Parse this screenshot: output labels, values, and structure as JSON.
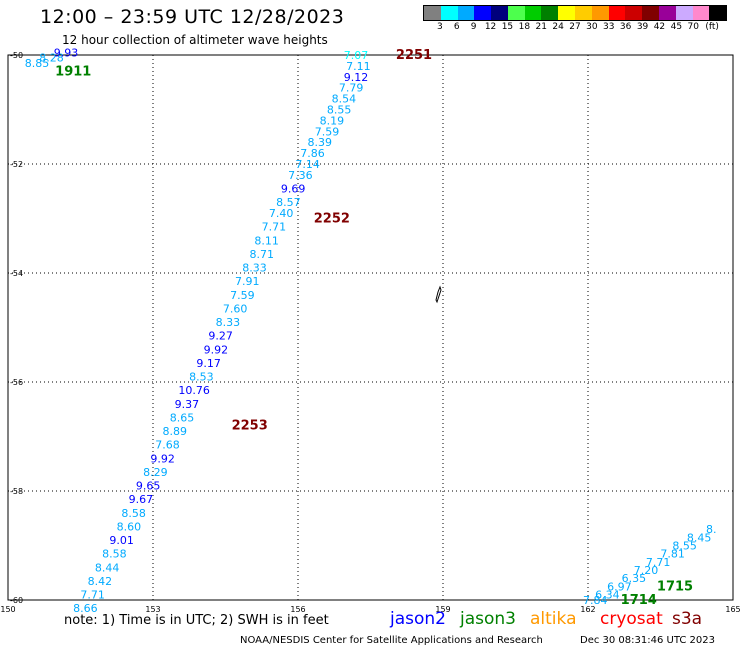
{
  "header": {
    "title": "12:00 – 23:59 UTC 12/28/2023",
    "subtitle": "12 hour collection of altimeter wave heights"
  },
  "legend": {
    "unit": "(ft)",
    "colors": [
      "#808080",
      "#00ffff",
      "#00aaff",
      "#0000ff",
      "#00007d",
      "#4dff4d",
      "#00cc00",
      "#008000",
      "#ffff00",
      "#ffcc00",
      "#ff9900",
      "#ff0000",
      "#cc0000",
      "#800000",
      "#990099",
      "#ccaaff",
      "#ff88cc",
      "#000000"
    ],
    "labels": [
      "3",
      "6",
      "9",
      "12",
      "15",
      "18",
      "21",
      "24",
      "27",
      "30",
      "33",
      "36",
      "39",
      "42",
      "45",
      "70"
    ]
  },
  "chart_data": {
    "type": "scatter",
    "xlim": [
      150,
      165
    ],
    "ylim": [
      -60,
      -50
    ],
    "x_ticks": [
      "150",
      "153",
      "156",
      "159",
      "162",
      "165"
    ],
    "y_ticks": [
      "-50",
      "-52",
      "-54",
      "-56",
      "-58",
      "-60"
    ],
    "grid": true,
    "points": [
      {
        "lon": 150.6,
        "lat": -50.15,
        "value": "8.85",
        "color": "#00aaff"
      },
      {
        "lon": 150.9,
        "lat": -50.05,
        "value": "8.28",
        "color": "#00aaff"
      },
      {
        "lon": 151.2,
        "lat": -49.95,
        "value": "9.93",
        "color": "#0000ff"
      },
      {
        "lon": 157.2,
        "lat": -50.0,
        "value": "7.07",
        "color": "#00ffff"
      },
      {
        "lon": 157.25,
        "lat": -50.2,
        "value": "7.11",
        "color": "#00aaff"
      },
      {
        "lon": 157.2,
        "lat": -50.4,
        "value": "9.12",
        "color": "#0000ff"
      },
      {
        "lon": 157.1,
        "lat": -50.6,
        "value": "7.79",
        "color": "#00aaff"
      },
      {
        "lon": 156.95,
        "lat": -50.8,
        "value": "8.54",
        "color": "#00aaff"
      },
      {
        "lon": 156.85,
        "lat": -51.0,
        "value": "8.55",
        "color": "#00aaff"
      },
      {
        "lon": 156.7,
        "lat": -51.2,
        "value": "8.19",
        "color": "#00aaff"
      },
      {
        "lon": 156.6,
        "lat": -51.4,
        "value": "7.59",
        "color": "#00aaff"
      },
      {
        "lon": 156.45,
        "lat": -51.6,
        "value": "8.39",
        "color": "#00aaff"
      },
      {
        "lon": 156.3,
        "lat": -51.8,
        "value": "7.86",
        "color": "#00aaff"
      },
      {
        "lon": 156.2,
        "lat": -52.0,
        "value": "7.14",
        "color": "#00aaff"
      },
      {
        "lon": 156.05,
        "lat": -52.2,
        "value": "7.36",
        "color": "#00aaff"
      },
      {
        "lon": 155.9,
        "lat": -52.45,
        "value": "9.69",
        "color": "#0000ff"
      },
      {
        "lon": 155.8,
        "lat": -52.7,
        "value": "8.57",
        "color": "#00aaff"
      },
      {
        "lon": 155.65,
        "lat": -52.9,
        "value": "7.40",
        "color": "#00aaff"
      },
      {
        "lon": 155.5,
        "lat": -53.15,
        "value": "7.71",
        "color": "#00aaff"
      },
      {
        "lon": 155.35,
        "lat": -53.4,
        "value": "8.11",
        "color": "#00aaff"
      },
      {
        "lon": 155.25,
        "lat": -53.65,
        "value": "8.71",
        "color": "#00aaff"
      },
      {
        "lon": 155.1,
        "lat": -53.9,
        "value": "8.33",
        "color": "#00aaff"
      },
      {
        "lon": 154.95,
        "lat": -54.15,
        "value": "7.91",
        "color": "#00aaff"
      },
      {
        "lon": 154.85,
        "lat": -54.4,
        "value": "7.59",
        "color": "#00aaff"
      },
      {
        "lon": 154.7,
        "lat": -54.65,
        "value": "7.60",
        "color": "#00aaff"
      },
      {
        "lon": 154.55,
        "lat": -54.9,
        "value": "8.33",
        "color": "#00aaff"
      },
      {
        "lon": 154.4,
        "lat": -55.15,
        "value": "9.27",
        "color": "#0000ff"
      },
      {
        "lon": 154.3,
        "lat": -55.4,
        "value": "9.92",
        "color": "#0000ff"
      },
      {
        "lon": 154.15,
        "lat": -55.65,
        "value": "9.17",
        "color": "#0000ff"
      },
      {
        "lon": 154.0,
        "lat": -55.9,
        "value": "8.53",
        "color": "#00aaff"
      },
      {
        "lon": 153.85,
        "lat": -56.15,
        "value": "10.76",
        "color": "#0000ff"
      },
      {
        "lon": 153.7,
        "lat": -56.4,
        "value": "9.37",
        "color": "#0000ff"
      },
      {
        "lon": 153.6,
        "lat": -56.65,
        "value": "8.65",
        "color": "#00aaff"
      },
      {
        "lon": 153.45,
        "lat": -56.9,
        "value": "8.89",
        "color": "#00aaff"
      },
      {
        "lon": 153.3,
        "lat": -57.15,
        "value": "7.68",
        "color": "#00aaff"
      },
      {
        "lon": 153.2,
        "lat": -57.4,
        "value": "9.92",
        "color": "#0000ff"
      },
      {
        "lon": 153.05,
        "lat": -57.65,
        "value": "8.29",
        "color": "#00aaff"
      },
      {
        "lon": 152.9,
        "lat": -57.9,
        "value": "9.65",
        "color": "#0000ff"
      },
      {
        "lon": 152.75,
        "lat": -58.15,
        "value": "9.67",
        "color": "#0000ff"
      },
      {
        "lon": 152.6,
        "lat": -58.4,
        "value": "8.58",
        "color": "#00aaff"
      },
      {
        "lon": 152.5,
        "lat": -58.65,
        "value": "8.60",
        "color": "#00aaff"
      },
      {
        "lon": 152.35,
        "lat": -58.9,
        "value": "9.01",
        "color": "#0000ff"
      },
      {
        "lon": 152.2,
        "lat": -59.15,
        "value": "8.58",
        "color": "#00aaff"
      },
      {
        "lon": 152.05,
        "lat": -59.4,
        "value": "8.44",
        "color": "#00aaff"
      },
      {
        "lon": 151.9,
        "lat": -59.65,
        "value": "8.42",
        "color": "#00aaff"
      },
      {
        "lon": 151.75,
        "lat": -59.9,
        "value": "7.71",
        "color": "#00aaff"
      },
      {
        "lon": 151.6,
        "lat": -60.15,
        "value": "8.66",
        "color": "#00aaff"
      },
      {
        "lon": 162.15,
        "lat": -60.0,
        "value": "7.84",
        "color": "#00aaff"
      },
      {
        "lon": 162.4,
        "lat": -59.9,
        "value": "6.34",
        "color": "#00aaff"
      },
      {
        "lon": 162.65,
        "lat": -59.75,
        "value": "6.97",
        "color": "#00aaff"
      },
      {
        "lon": 162.95,
        "lat": -59.6,
        "value": "6.35",
        "color": "#00aaff"
      },
      {
        "lon": 163.2,
        "lat": -59.45,
        "value": "7.20",
        "color": "#00aaff"
      },
      {
        "lon": 163.45,
        "lat": -59.3,
        "value": "7.71",
        "color": "#00aaff"
      },
      {
        "lon": 163.75,
        "lat": -59.15,
        "value": "7.81",
        "color": "#00aaff"
      },
      {
        "lon": 164.0,
        "lat": -59.0,
        "value": "8.55",
        "color": "#00aaff"
      },
      {
        "lon": 164.3,
        "lat": -58.85,
        "value": "8.45",
        "color": "#00aaff"
      },
      {
        "lon": 164.55,
        "lat": -58.7,
        "value": "8.",
        "color": "#00aaff"
      }
    ],
    "time_labels": [
      {
        "lon": 151.35,
        "lat": -50.3,
        "text": "1911",
        "color": "#008000"
      },
      {
        "lon": 158.4,
        "lat": -50.0,
        "text": "2251",
        "color": "#800000"
      },
      {
        "lon": 156.7,
        "lat": -53.0,
        "text": "2252",
        "color": "#800000"
      },
      {
        "lon": 155.0,
        "lat": -56.8,
        "text": "2253",
        "color": "#800000"
      },
      {
        "lon": 163.8,
        "lat": -59.75,
        "text": "1715",
        "color": "#008000"
      },
      {
        "lon": 163.05,
        "lat": -60.0,
        "text": "1714",
        "color": "#008000"
      }
    ]
  },
  "note": "note:  1) Time is in UTC;  2) SWH is in feet",
  "satellites": [
    {
      "name": "jason2",
      "color": "#0000ff"
    },
    {
      "name": "jason3",
      "color": "#008000"
    },
    {
      "name": "altika",
      "color": "#ff9900"
    },
    {
      "name": "cryosat",
      "color": "#ff0000"
    },
    {
      "name": "s3a",
      "color": "#800000"
    }
  ],
  "footer": {
    "credit": "NOAA/NESDIS Center for Satellite Applications and Research",
    "timestamp": "Dec 30 08:31:46 UTC 2023"
  }
}
